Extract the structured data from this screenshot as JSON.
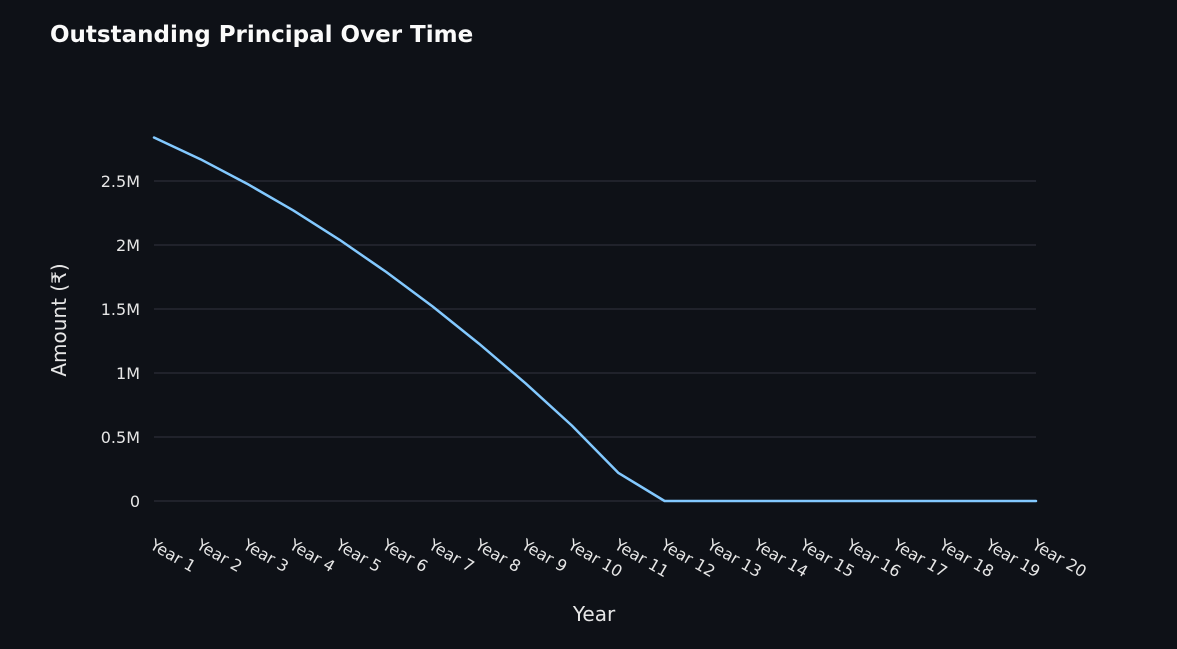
{
  "chart_data": {
    "type": "line",
    "title": "Outstanding Principal Over Time",
    "xlabel": "Year",
    "ylabel": "Amount (₹)",
    "categories": [
      "Year 1",
      "Year 2",
      "Year 3",
      "Year 4",
      "Year 5",
      "Year 6",
      "Year 7",
      "Year 8",
      "Year 9",
      "Year 10",
      "Year 11",
      "Year 12",
      "Year 13",
      "Year 14",
      "Year 15",
      "Year 16",
      "Year 17",
      "Year 18",
      "Year 19",
      "Year 20"
    ],
    "series": [
      {
        "values": [
          2840000,
          2670000,
          2480000,
          2270000,
          2040000,
          1790000,
          1520000,
          1230000,
          920000,
          590000,
          220000,
          0,
          0,
          0,
          0,
          0,
          0,
          0,
          0,
          0
        ],
        "color": "#83c9ff"
      }
    ],
    "yticks": [
      0,
      500000,
      1000000,
      1500000,
      2000000,
      2500000
    ],
    "ytick_labels": [
      "0",
      "0.5M",
      "1M",
      "1.5M",
      "2M",
      "2.5M"
    ],
    "ylim": [
      0,
      2500000
    ],
    "grid": true,
    "legend": "none"
  }
}
